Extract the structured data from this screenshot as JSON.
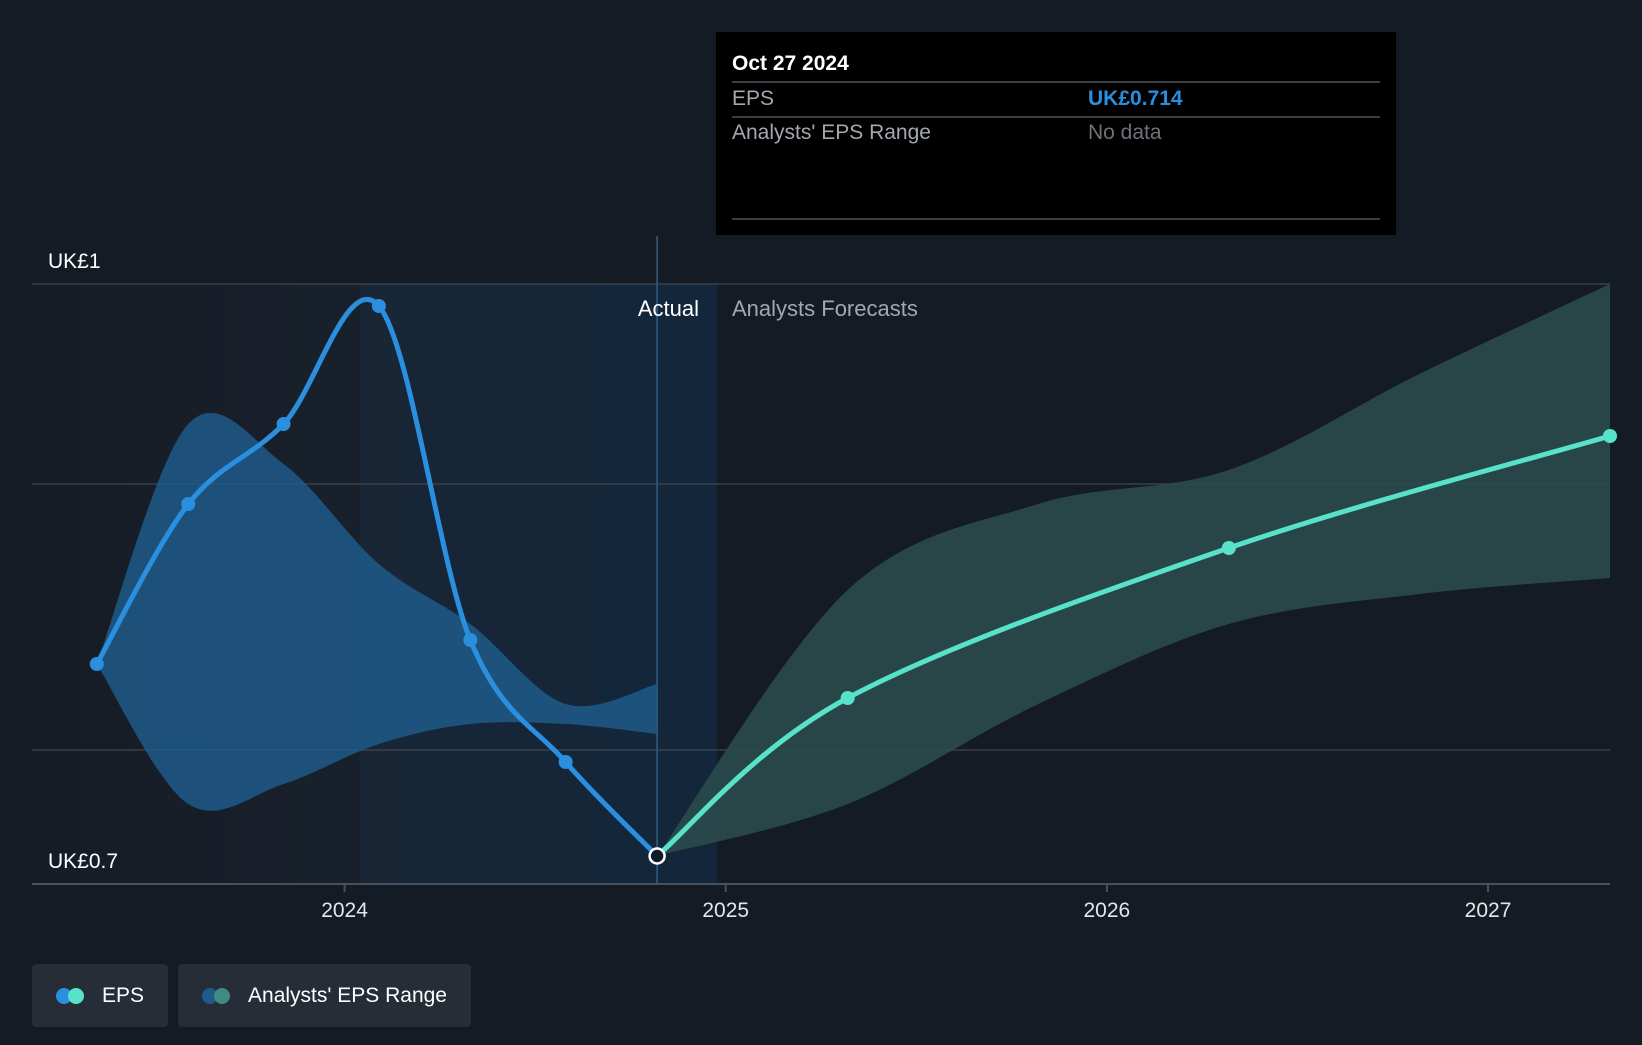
{
  "chart_data": {
    "type": "line",
    "title": "",
    "ylabel": "",
    "xlabel": "",
    "y_axis_labels": {
      "top": "UK£1",
      "bottom": "UK£0.7"
    },
    "ylim": [
      0.7,
      1.0
    ],
    "xlim": [
      2023.18,
      2027.32
    ],
    "x_ticks": [
      {
        "value": 2024.0,
        "label": "2024"
      },
      {
        "value": 2025.0,
        "label": "2025"
      },
      {
        "value": 2026.0,
        "label": "2026"
      },
      {
        "value": 2027.0,
        "label": "2027"
      }
    ],
    "gridlines_y": [
      1.0,
      0.9,
      0.767
    ],
    "divider_x": 2024.82,
    "region_labels": {
      "actual": "Actual",
      "forecast": "Analysts Forecasts"
    },
    "series": [
      {
        "name": "EPS",
        "kind": "actual",
        "color": "#2a8fde",
        "points": [
          {
            "x": 2023.35,
            "y": 0.81
          },
          {
            "x": 2023.59,
            "y": 0.89
          },
          {
            "x": 2023.84,
            "y": 0.93
          },
          {
            "x": 2024.09,
            "y": 0.989
          },
          {
            "x": 2024.33,
            "y": 0.822
          },
          {
            "x": 2024.58,
            "y": 0.761
          },
          {
            "x": 2024.82,
            "y": 0.714
          }
        ]
      },
      {
        "name": "EPS",
        "kind": "forecast",
        "color": "#58e2c9",
        "points": [
          {
            "x": 2024.82,
            "y": 0.714
          },
          {
            "x": 2025.32,
            "y": 0.793
          },
          {
            "x": 2026.32,
            "y": 0.868
          },
          {
            "x": 2027.32,
            "y": 0.924
          }
        ]
      }
    ],
    "ranges": [
      {
        "name": "Analysts' EPS Range",
        "kind": "actual",
        "color": "#1f5a8a",
        "x": [
          2023.35,
          2023.59,
          2023.84,
          2024.09,
          2024.33,
          2024.58,
          2024.82
        ],
        "high": [
          0.81,
          0.93,
          0.91,
          0.86,
          0.83,
          0.79,
          0.8
        ],
        "low": [
          0.81,
          0.74,
          0.75,
          0.77,
          0.78,
          0.78,
          0.775
        ]
      },
      {
        "name": "Analysts' EPS Range",
        "kind": "forecast",
        "color": "#2a4b4d",
        "x": [
          2024.82,
          2025.32,
          2025.82,
          2026.32,
          2026.82,
          2027.32
        ],
        "high": [
          0.714,
          0.847,
          0.89,
          0.907,
          0.955,
          1.0
        ],
        "low": [
          0.714,
          0.74,
          0.79,
          0.83,
          0.845,
          0.853
        ]
      }
    ],
    "tooltip": {
      "date": "Oct 27 2024",
      "rows": [
        {
          "label": "EPS",
          "value": "UK£0.714",
          "color": "#2a8fde"
        },
        {
          "label": "Analysts' EPS Range",
          "value": "No data",
          "color": "#6e737a"
        }
      ]
    },
    "legend": [
      {
        "label": "EPS",
        "colors": [
          "#2a8fde",
          "#58e2c9"
        ]
      },
      {
        "label": "Analysts' EPS Range",
        "colors": [
          "#1f5a8a",
          "#3f8a82"
        ]
      }
    ]
  }
}
